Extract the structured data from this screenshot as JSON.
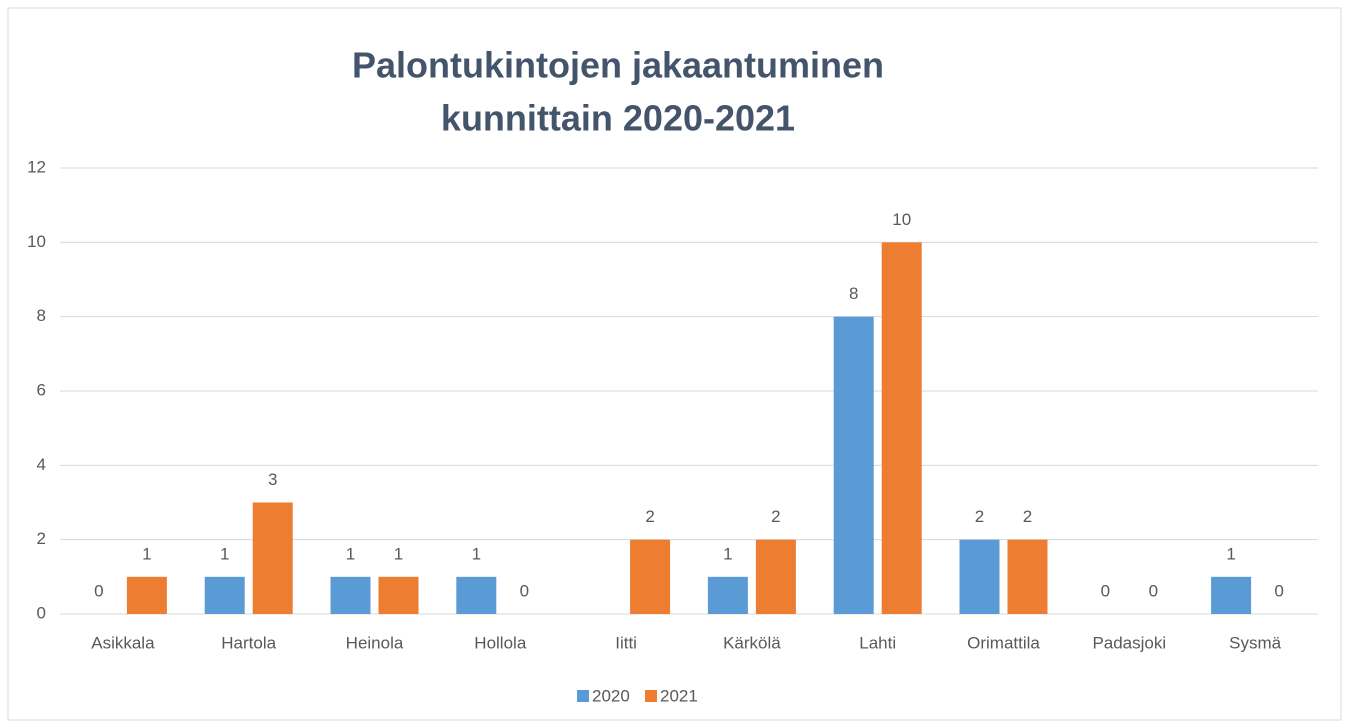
{
  "chart_data": {
    "type": "bar",
    "title": [
      "Palontukintojen jakaantuminen",
      "kunnittain 2020-2021"
    ],
    "categories": [
      "Asikkala",
      "Hartola",
      "Heinola",
      "Hollola",
      "Iitti",
      "Kärkölä",
      "Lahti",
      "Orimattila",
      "Padasjoki",
      "Sysmä"
    ],
    "series": [
      {
        "name": "2020",
        "color": "#5b9bd5",
        "values": [
          0,
          1,
          1,
          1,
          null,
          1,
          8,
          2,
          0,
          1
        ]
      },
      {
        "name": "2021",
        "color": "#ed7d31",
        "values": [
          1,
          3,
          1,
          0,
          2,
          2,
          10,
          2,
          0,
          0
        ]
      }
    ],
    "ylim": [
      0,
      12
    ],
    "yticks": [
      0,
      2,
      4,
      6,
      8,
      10,
      12
    ],
    "grid": true,
    "legend": "bottom"
  }
}
